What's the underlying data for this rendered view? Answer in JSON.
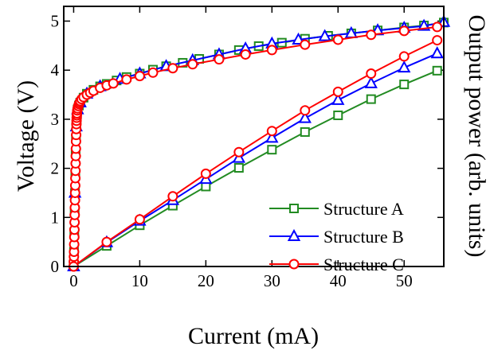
{
  "chart_data": {
    "type": "line",
    "xlabel": "Current (mA)",
    "ylabel": "Voltage (V)",
    "y2label": "Output power (arb. units)",
    "xlim": [
      -1.5,
      56
    ],
    "ylim": [
      0,
      5.3
    ],
    "xticks": [
      0,
      10,
      20,
      30,
      40,
      50
    ],
    "yticks": [
      0,
      1,
      2,
      3,
      4,
      5
    ],
    "grid": false,
    "legend": "lower-right",
    "series": [
      {
        "name": "Structure A",
        "color": "#228B22",
        "marker": "square",
        "voltage": {
          "x": [
            0,
            0.05,
            0.1,
            0.15,
            0.2,
            0.25,
            0.3,
            0.35,
            0.4,
            0.45,
            0.5,
            0.6,
            0.8,
            1.0,
            1.5,
            2.0,
            3.0,
            4.0,
            5.0,
            6.5,
            8.0,
            10.0,
            12.0,
            14.0,
            16.5,
            19.0,
            22.0,
            25.0,
            28.0,
            31.5,
            35.0,
            38.5,
            42.0,
            46.0,
            50.0,
            53.0,
            56.0
          ],
          "y": [
            0.0,
            0.3,
            0.7,
            1.1,
            1.5,
            1.9,
            2.3,
            2.6,
            2.85,
            3.0,
            3.1,
            3.2,
            3.28,
            3.34,
            3.44,
            3.52,
            3.6,
            3.67,
            3.72,
            3.79,
            3.86,
            3.93,
            4.01,
            4.08,
            4.15,
            4.23,
            4.32,
            4.41,
            4.49,
            4.56,
            4.64,
            4.7,
            4.75,
            4.81,
            4.87,
            4.91,
            4.97
          ]
        },
        "power": {
          "x": [
            0,
            5,
            10,
            15,
            20,
            25,
            30,
            35,
            40,
            45,
            50,
            55
          ],
          "y": [
            0.0,
            0.42,
            0.84,
            1.24,
            1.63,
            2.01,
            2.38,
            2.74,
            3.08,
            3.41,
            3.71,
            3.99
          ]
        }
      },
      {
        "name": "Structure B",
        "color": "#0000FF",
        "marker": "triangle",
        "voltage": {
          "x": [
            0,
            0.2,
            0.4,
            0.6,
            1.0,
            2.0,
            4.0,
            7.0,
            10.0,
            14.0,
            18.0,
            22.0,
            26.0,
            30.0,
            34.0,
            38.0,
            42.0,
            46.0,
            50.0,
            53.0,
            56.0
          ],
          "y": [
            0.0,
            1.5,
            2.85,
            3.2,
            3.34,
            3.52,
            3.67,
            3.82,
            3.93,
            4.08,
            4.2,
            4.32,
            4.44,
            4.54,
            4.62,
            4.69,
            4.75,
            4.81,
            4.86,
            4.9,
            4.98
          ]
        },
        "power": {
          "x": [
            0,
            5,
            10,
            15,
            20,
            25,
            30,
            35,
            40,
            45,
            50,
            55
          ],
          "y": [
            0.0,
            0.49,
            0.93,
            1.35,
            1.78,
            2.21,
            2.62,
            3.02,
            3.39,
            3.73,
            4.05,
            4.34
          ]
        }
      },
      {
        "name": "Structure C",
        "color": "#FF0000",
        "marker": "circle",
        "voltage": {
          "x": [
            0,
            0.02,
            0.04,
            0.06,
            0.08,
            0.1,
            0.12,
            0.14,
            0.16,
            0.18,
            0.2,
            0.22,
            0.24,
            0.26,
            0.28,
            0.3,
            0.32,
            0.34,
            0.36,
            0.38,
            0.4,
            0.42,
            0.44,
            0.46,
            0.48,
            0.5,
            0.55,
            0.6,
            0.7,
            0.8,
            0.9,
            1.0,
            1.2,
            1.5,
            2.0,
            2.5,
            3.0,
            4.0,
            5.0,
            6.0,
            8.0,
            10.0,
            12.0,
            15.0,
            18.0,
            22.0,
            26.0,
            30.0,
            35.0,
            40.0,
            45.0,
            50.0,
            55.0
          ],
          "y": [
            0.0,
            0.1,
            0.2,
            0.3,
            0.45,
            0.6,
            0.75,
            0.9,
            1.05,
            1.2,
            1.35,
            1.5,
            1.65,
            1.8,
            1.95,
            2.1,
            2.25,
            2.4,
            2.55,
            2.68,
            2.8,
            2.9,
            2.97,
            3.03,
            3.08,
            3.12,
            3.18,
            3.22,
            3.27,
            3.31,
            3.34,
            3.37,
            3.41,
            3.45,
            3.5,
            3.54,
            3.58,
            3.64,
            3.69,
            3.73,
            3.81,
            3.88,
            3.95,
            4.04,
            4.12,
            4.22,
            4.32,
            4.41,
            4.52,
            4.62,
            4.72,
            4.8,
            4.88
          ]
        },
        "power": {
          "x": [
            0,
            5,
            10,
            15,
            20,
            25,
            30,
            35,
            40,
            45,
            50,
            55
          ],
          "y": [
            0.0,
            0.5,
            0.96,
            1.43,
            1.89,
            2.33,
            2.76,
            3.18,
            3.56,
            3.93,
            4.28,
            4.61
          ]
        }
      }
    ]
  }
}
